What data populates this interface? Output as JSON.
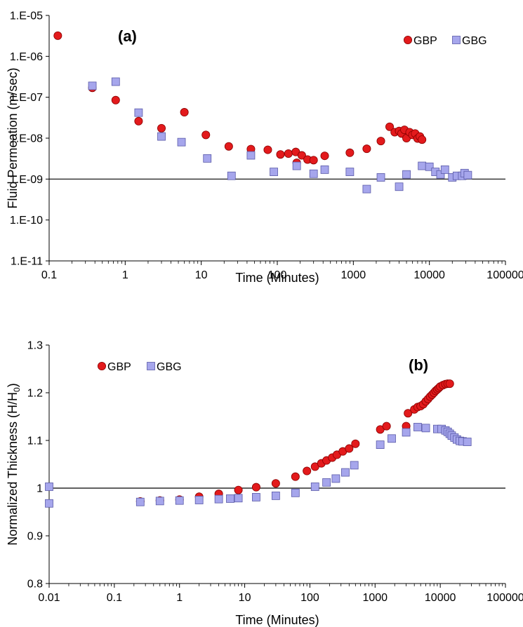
{
  "colors": {
    "gbp_fill": "#e31a1c",
    "gbp_stroke": "#8b0000",
    "gbg_fill": "#a6a6ec",
    "gbg_stroke": "#5a5aa8"
  },
  "chart_data": [
    {
      "type": "scatter",
      "panel_label": "(a)",
      "xlabel": "Time (Minutes)",
      "ylabel": "Fluid Permeation (m/sec)",
      "xscale": "log",
      "yscale": "log",
      "xlim": [
        0.1,
        100000
      ],
      "ylim": [
        1e-11,
        1e-05
      ],
      "x_tick_values": [
        0.1,
        1,
        10,
        100,
        1000,
        10000,
        100000
      ],
      "x_tick_labels": [
        "0.1",
        "1",
        "10",
        "100",
        "1000",
        "10000",
        "100000"
      ],
      "y_tick_values": [
        1e-11,
        1e-10,
        1e-09,
        1e-08,
        1e-07,
        1e-06,
        1e-05
      ],
      "y_tick_labels": [
        "1.E-11",
        "1.E-10",
        "1.E-09",
        "1.E-08",
        "1.E-07",
        "1.E-06",
        "1.E-05"
      ],
      "reference_line_y": 1e-09,
      "legend_position": "top-right",
      "series": [
        {
          "name": "GBP",
          "marker": "circle",
          "points": [
            [
              0.13,
              3.2e-06
            ],
            [
              0.37,
              1.7e-07
            ],
            [
              0.75,
              8.5e-08
            ],
            [
              1.5,
              2.6e-08
            ],
            [
              3,
              1.75e-08
            ],
            [
              6,
              4.3e-08
            ],
            [
              11.5,
              1.2e-08
            ],
            [
              23,
              6.3e-09
            ],
            [
              45,
              5.4e-09
            ],
            [
              75,
              5.2e-09
            ],
            [
              110,
              4e-09
            ],
            [
              140,
              4.2e-09
            ],
            [
              175,
              4.6e-09
            ],
            [
              210,
              3.8e-09
            ],
            [
              250,
              3e-09
            ],
            [
              300,
              2.9e-09
            ],
            [
              420,
              3.7e-09
            ],
            [
              900,
              4.4e-09
            ],
            [
              1500,
              5.5e-09
            ],
            [
              2300,
              8.5e-09
            ],
            [
              3000,
              1.9e-08
            ],
            [
              3500,
              1.4e-08
            ],
            [
              4000,
              1.5e-08
            ],
            [
              4300,
              1.3e-08
            ],
            [
              4700,
              1.6e-08
            ],
            [
              5000,
              1e-08
            ],
            [
              5500,
              1.4e-08
            ],
            [
              6000,
              1.2e-08
            ],
            [
              6500,
              1.3e-08
            ],
            [
              7000,
              9.8e-09
            ],
            [
              7500,
              1.1e-08
            ],
            [
              8000,
              9.2e-09
            ],
            [
              180,
              2.5e-09
            ]
          ]
        },
        {
          "name": "GBG",
          "marker": "square",
          "points": [
            [
              0.37,
              1.9e-07
            ],
            [
              0.75,
              2.4e-07
            ],
            [
              1.5,
              4.2e-08
            ],
            [
              3,
              1.1e-08
            ],
            [
              5.5,
              8e-09
            ],
            [
              12,
              3.2e-09
            ],
            [
              25,
              1.2e-09
            ],
            [
              45,
              3.8e-09
            ],
            [
              90,
              1.5e-09
            ],
            [
              180,
              2.1e-09
            ],
            [
              300,
              1.35e-09
            ],
            [
              420,
              1.7e-09
            ],
            [
              900,
              1.5e-09
            ],
            [
              1500,
              5.7e-10
            ],
            [
              2300,
              1.1e-09
            ],
            [
              4000,
              6.5e-10
            ],
            [
              5000,
              1.3e-09
            ],
            [
              8000,
              2.1e-09
            ],
            [
              10000,
              2e-09
            ],
            [
              12000,
              1.5e-09
            ],
            [
              14000,
              1.3e-09
            ],
            [
              16000,
              1.7e-09
            ],
            [
              20000,
              1.1e-09
            ],
            [
              23000,
              1.2e-09
            ],
            [
              27000,
              1.2e-09
            ],
            [
              29000,
              1.4e-09
            ],
            [
              32000,
              1.25e-09
            ]
          ]
        }
      ]
    },
    {
      "type": "scatter",
      "panel_label": "(b)",
      "xlabel": "Time (Minutes)",
      "ylabel_main": "Normalized Thickness (H/H",
      "ylabel_sub": "0",
      "ylabel_close": ")",
      "xscale": "log",
      "yscale": "linear",
      "xlim": [
        0.01,
        100000
      ],
      "ylim": [
        0.8,
        1.3
      ],
      "x_tick_values": [
        0.01,
        0.1,
        1,
        10,
        100,
        1000,
        10000,
        100000
      ],
      "x_tick_labels": [
        "0.01",
        "0.1",
        "1",
        "10",
        "100",
        "1000",
        "10000",
        "100000"
      ],
      "y_tick_values": [
        0.8,
        0.9,
        1.0,
        1.1,
        1.2,
        1.3
      ],
      "y_tick_labels": [
        "0.8",
        "0.9",
        "1",
        "1.1",
        "1.2",
        "1.3"
      ],
      "reference_line_y": 1.0,
      "legend_position": "top-left",
      "series": [
        {
          "name": "GBP",
          "marker": "circle",
          "points": [
            [
              0.25,
              0.972
            ],
            [
              0.5,
              0.974
            ],
            [
              1,
              0.976
            ],
            [
              2,
              0.982
            ],
            [
              4,
              0.988
            ],
            [
              8,
              0.996
            ],
            [
              15,
              1.002
            ],
            [
              30,
              1.01
            ],
            [
              60,
              1.024
            ],
            [
              90,
              1.036
            ],
            [
              120,
              1.045
            ],
            [
              150,
              1.052
            ],
            [
              180,
              1.058
            ],
            [
              220,
              1.064
            ],
            [
              260,
              1.07
            ],
            [
              320,
              1.077
            ],
            [
              400,
              1.083
            ],
            [
              500,
              1.093
            ],
            [
              1200,
              1.123
            ],
            [
              1500,
              1.13
            ],
            [
              3000,
              1.13
            ],
            [
              3200,
              1.157
            ],
            [
              4000,
              1.165
            ],
            [
              4500,
              1.17
            ],
            [
              5000,
              1.172
            ],
            [
              5500,
              1.176
            ],
            [
              6000,
              1.182
            ],
            [
              6500,
              1.187
            ],
            [
              7000,
              1.192
            ],
            [
              7500,
              1.196
            ],
            [
              8000,
              1.2
            ],
            [
              8500,
              1.204
            ],
            [
              9000,
              1.207
            ],
            [
              9500,
              1.21
            ],
            [
              10000,
              1.213
            ],
            [
              11000,
              1.216
            ],
            [
              12000,
              1.218
            ],
            [
              13000,
              1.219
            ],
            [
              14000,
              1.219
            ]
          ]
        },
        {
          "name": "GBG",
          "marker": "square",
          "points": [
            [
              0.01,
              1.003
            ],
            [
              0.01,
              0.968
            ],
            [
              0.25,
              0.971
            ],
            [
              0.5,
              0.973
            ],
            [
              1,
              0.974
            ],
            [
              2,
              0.975
            ],
            [
              4,
              0.977
            ],
            [
              6,
              0.978
            ],
            [
              8,
              0.979
            ],
            [
              15,
              0.981
            ],
            [
              30,
              0.984
            ],
            [
              60,
              0.99
            ],
            [
              120,
              1.003
            ],
            [
              180,
              1.012
            ],
            [
              250,
              1.02
            ],
            [
              350,
              1.033
            ],
            [
              480,
              1.048
            ],
            [
              1200,
              1.091
            ],
            [
              1800,
              1.104
            ],
            [
              3000,
              1.117
            ],
            [
              4500,
              1.128
            ],
            [
              6000,
              1.126
            ],
            [
              9000,
              1.124
            ],
            [
              10500,
              1.124
            ],
            [
              12000,
              1.121
            ],
            [
              13000,
              1.118
            ],
            [
              14000,
              1.114
            ],
            [
              15000,
              1.11
            ],
            [
              16500,
              1.106
            ],
            [
              18000,
              1.102
            ],
            [
              20000,
              1.099
            ],
            [
              22000,
              1.098
            ],
            [
              26000,
              1.097
            ]
          ]
        }
      ]
    }
  ]
}
